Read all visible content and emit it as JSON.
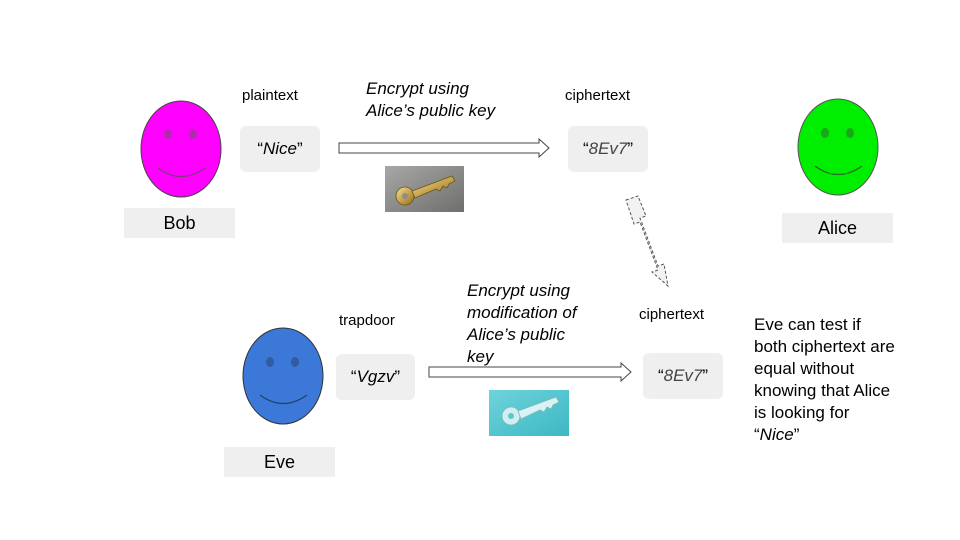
{
  "bob": {
    "name": "Bob",
    "face_color": "#ff00ff",
    "plaintext_label": "plaintext",
    "plaintext": {
      "open": "“",
      "value": "Nice",
      "close": "”"
    },
    "encrypt_caption": [
      "Encrypt using",
      "Alice’s public key"
    ],
    "ciphertext_label": "ciphertext",
    "ciphertext": {
      "open": "“",
      "value": "8Ev7",
      "close": "”"
    }
  },
  "alice": {
    "name": "Alice",
    "face_color": "#00ee00"
  },
  "eve": {
    "name": "Eve",
    "face_color": "#3c78d8",
    "trapdoor_label": "trapdoor",
    "trapdoor": {
      "open": "“",
      "value": "Vgzv",
      "close": "”"
    },
    "encrypt_caption": [
      "Encrypt using",
      "modification of",
      "Alice’s public",
      "key"
    ],
    "ciphertext_label": "ciphertext",
    "ciphertext": {
      "open": "“",
      "value": "8Ev7",
      "close": "”"
    }
  },
  "note": {
    "lines": [
      "Eve can test if",
      "both ciphertext are",
      "equal without",
      "knowing that Alice",
      "is looking for"
    ],
    "last_open": "“",
    "last_value": "Nice",
    "last_close": "”"
  },
  "icons": {
    "bob_key": "brass-key-icon",
    "eve_key": "cyan-key-icon",
    "compare_arrow": "double-headed-dashed-arrow-icon"
  }
}
